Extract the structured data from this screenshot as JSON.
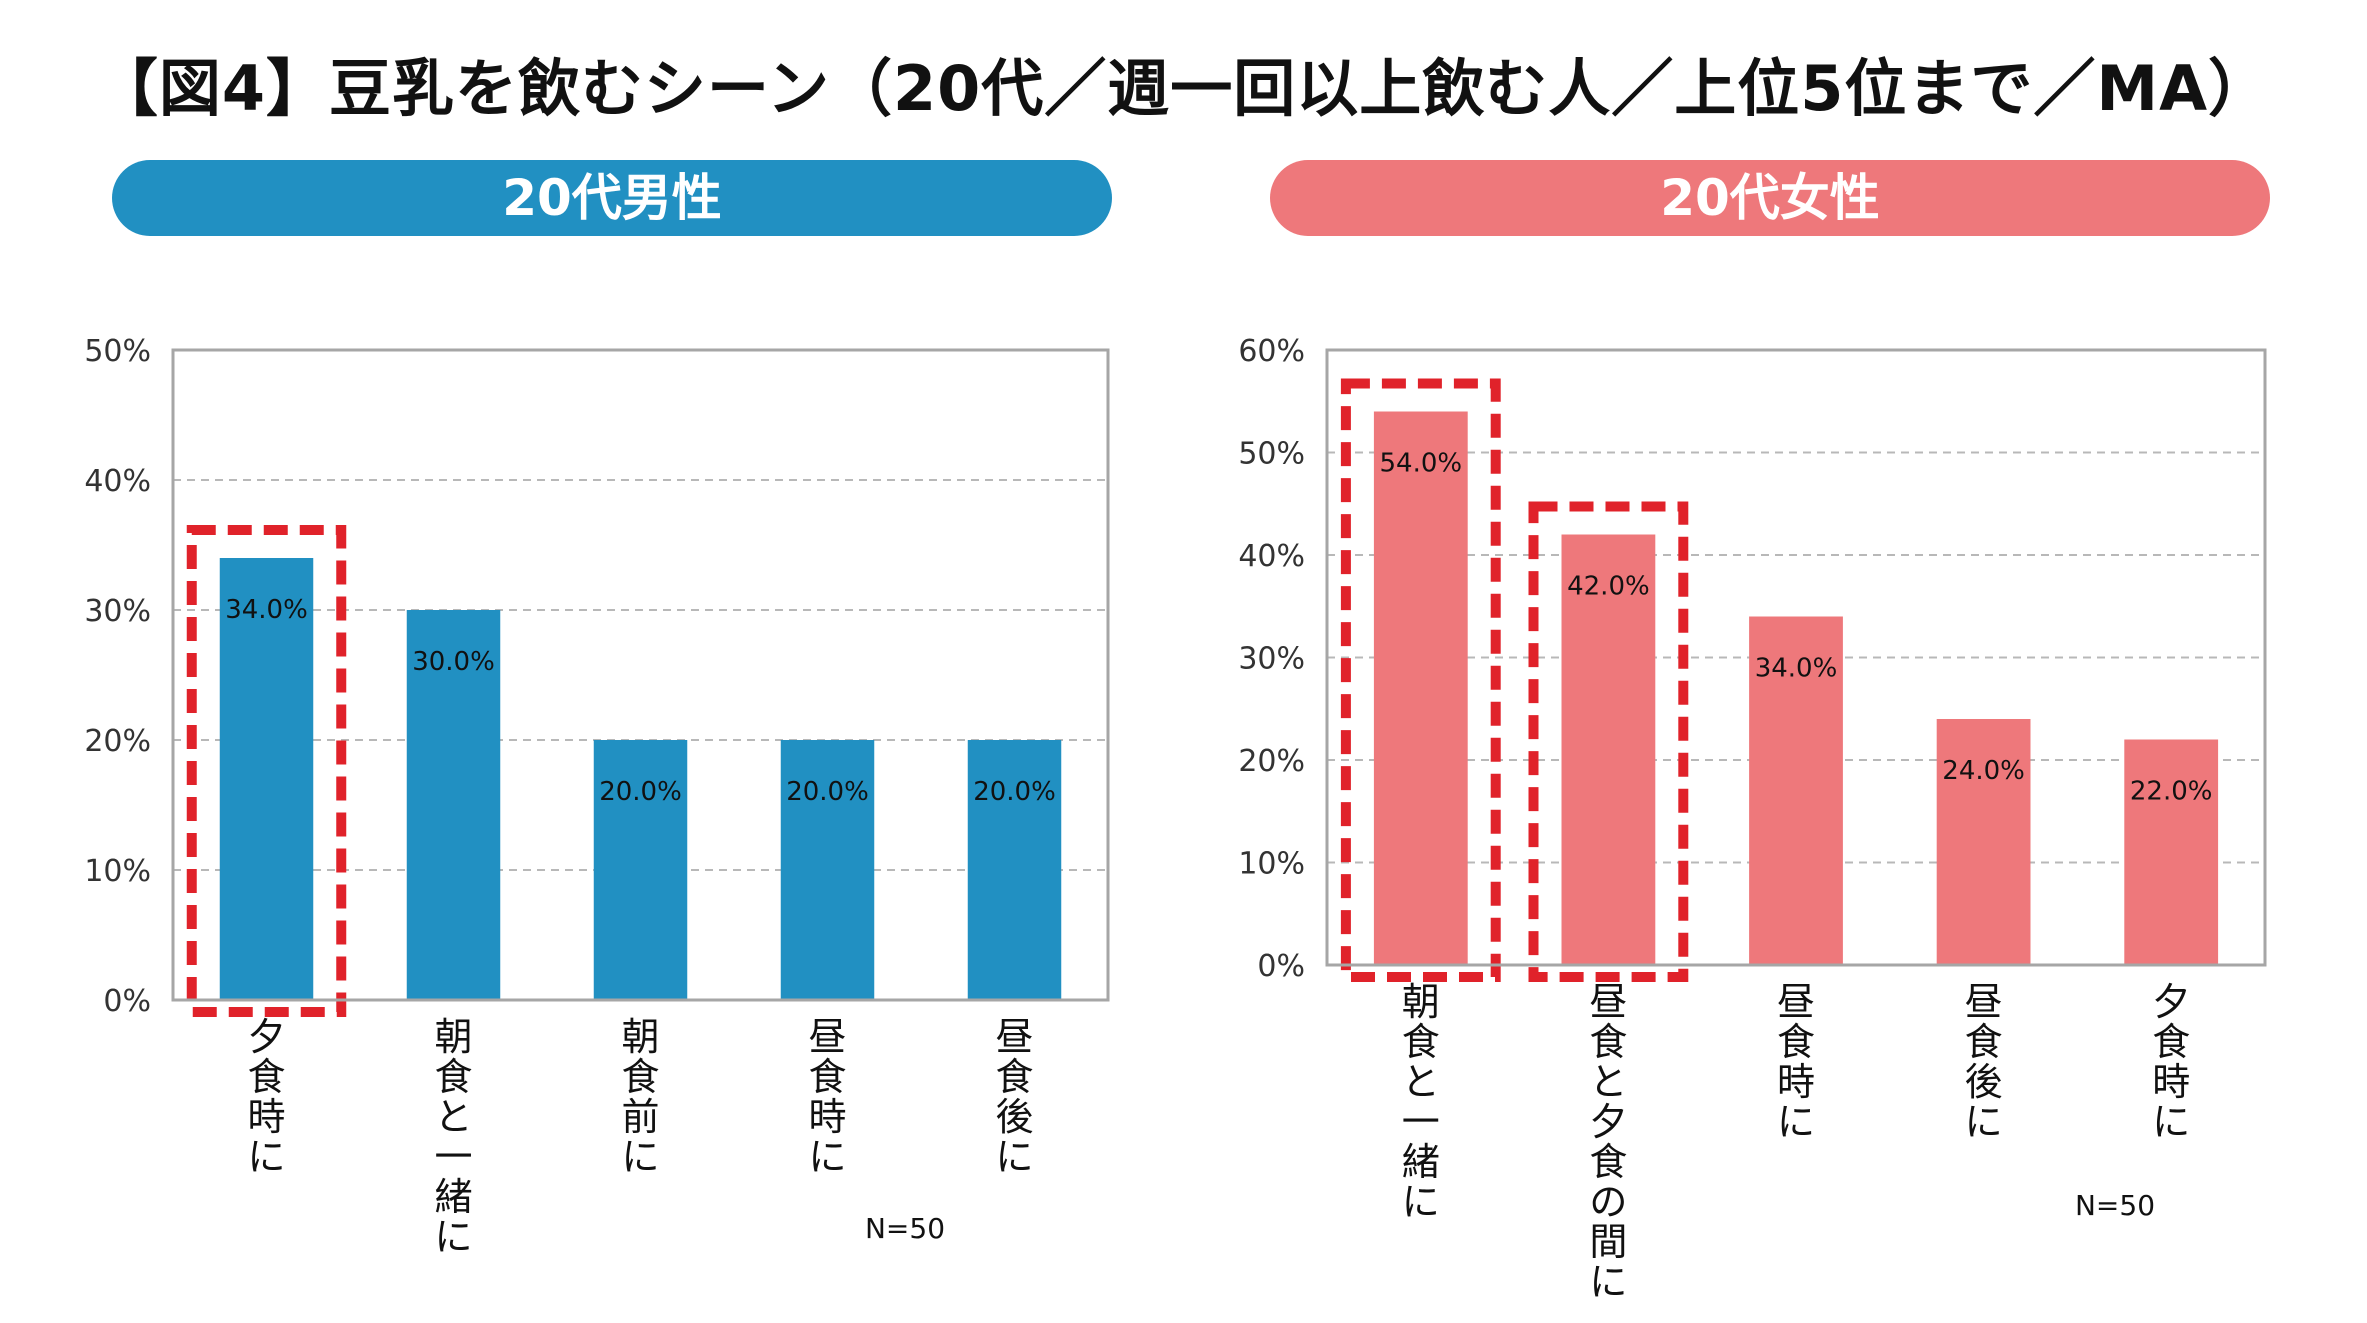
{
  "title": "【図4】豆乳を飲むシーン（20代／週一回以上飲む人／上位5位まで／MA）",
  "colors": {
    "male": "#2190c2",
    "female": "#ee787b",
    "highlight": "#e0222a"
  },
  "chart_data": [
    {
      "type": "bar",
      "title": "20代男性",
      "categories": [
        "夕食時に",
        "朝食と一緒に",
        "朝食前に",
        "昼食時に",
        "昼食後に"
      ],
      "values": [
        34.0,
        30.0,
        20.0,
        20.0,
        20.0
      ],
      "data_labels": [
        "34.0%",
        "30.0%",
        "20.0%",
        "20.0%",
        "20.0%"
      ],
      "ylim": [
        0,
        50
      ],
      "yticks": [
        "0%",
        "10%",
        "20%",
        "30%",
        "40%",
        "50%"
      ],
      "grid": true,
      "highlighted": [
        "夕食時に"
      ],
      "note": "N=50"
    },
    {
      "type": "bar",
      "title": "20代女性",
      "categories": [
        "朝食と一緒に",
        "昼食と夕食の間に",
        "昼食時に",
        "昼食後に",
        "夕食時に"
      ],
      "values": [
        54.0,
        42.0,
        34.0,
        24.0,
        22.0
      ],
      "data_labels": [
        "54.0%",
        "42.0%",
        "34.0%",
        "24.0%",
        "22.0%"
      ],
      "ylim": [
        0,
        60
      ],
      "yticks": [
        "0%",
        "10%",
        "20%",
        "30%",
        "40%",
        "50%",
        "60%"
      ],
      "grid": true,
      "highlighted": [
        "朝食と一緒に",
        "昼食と夕食の間に"
      ],
      "note": "N=50"
    }
  ]
}
